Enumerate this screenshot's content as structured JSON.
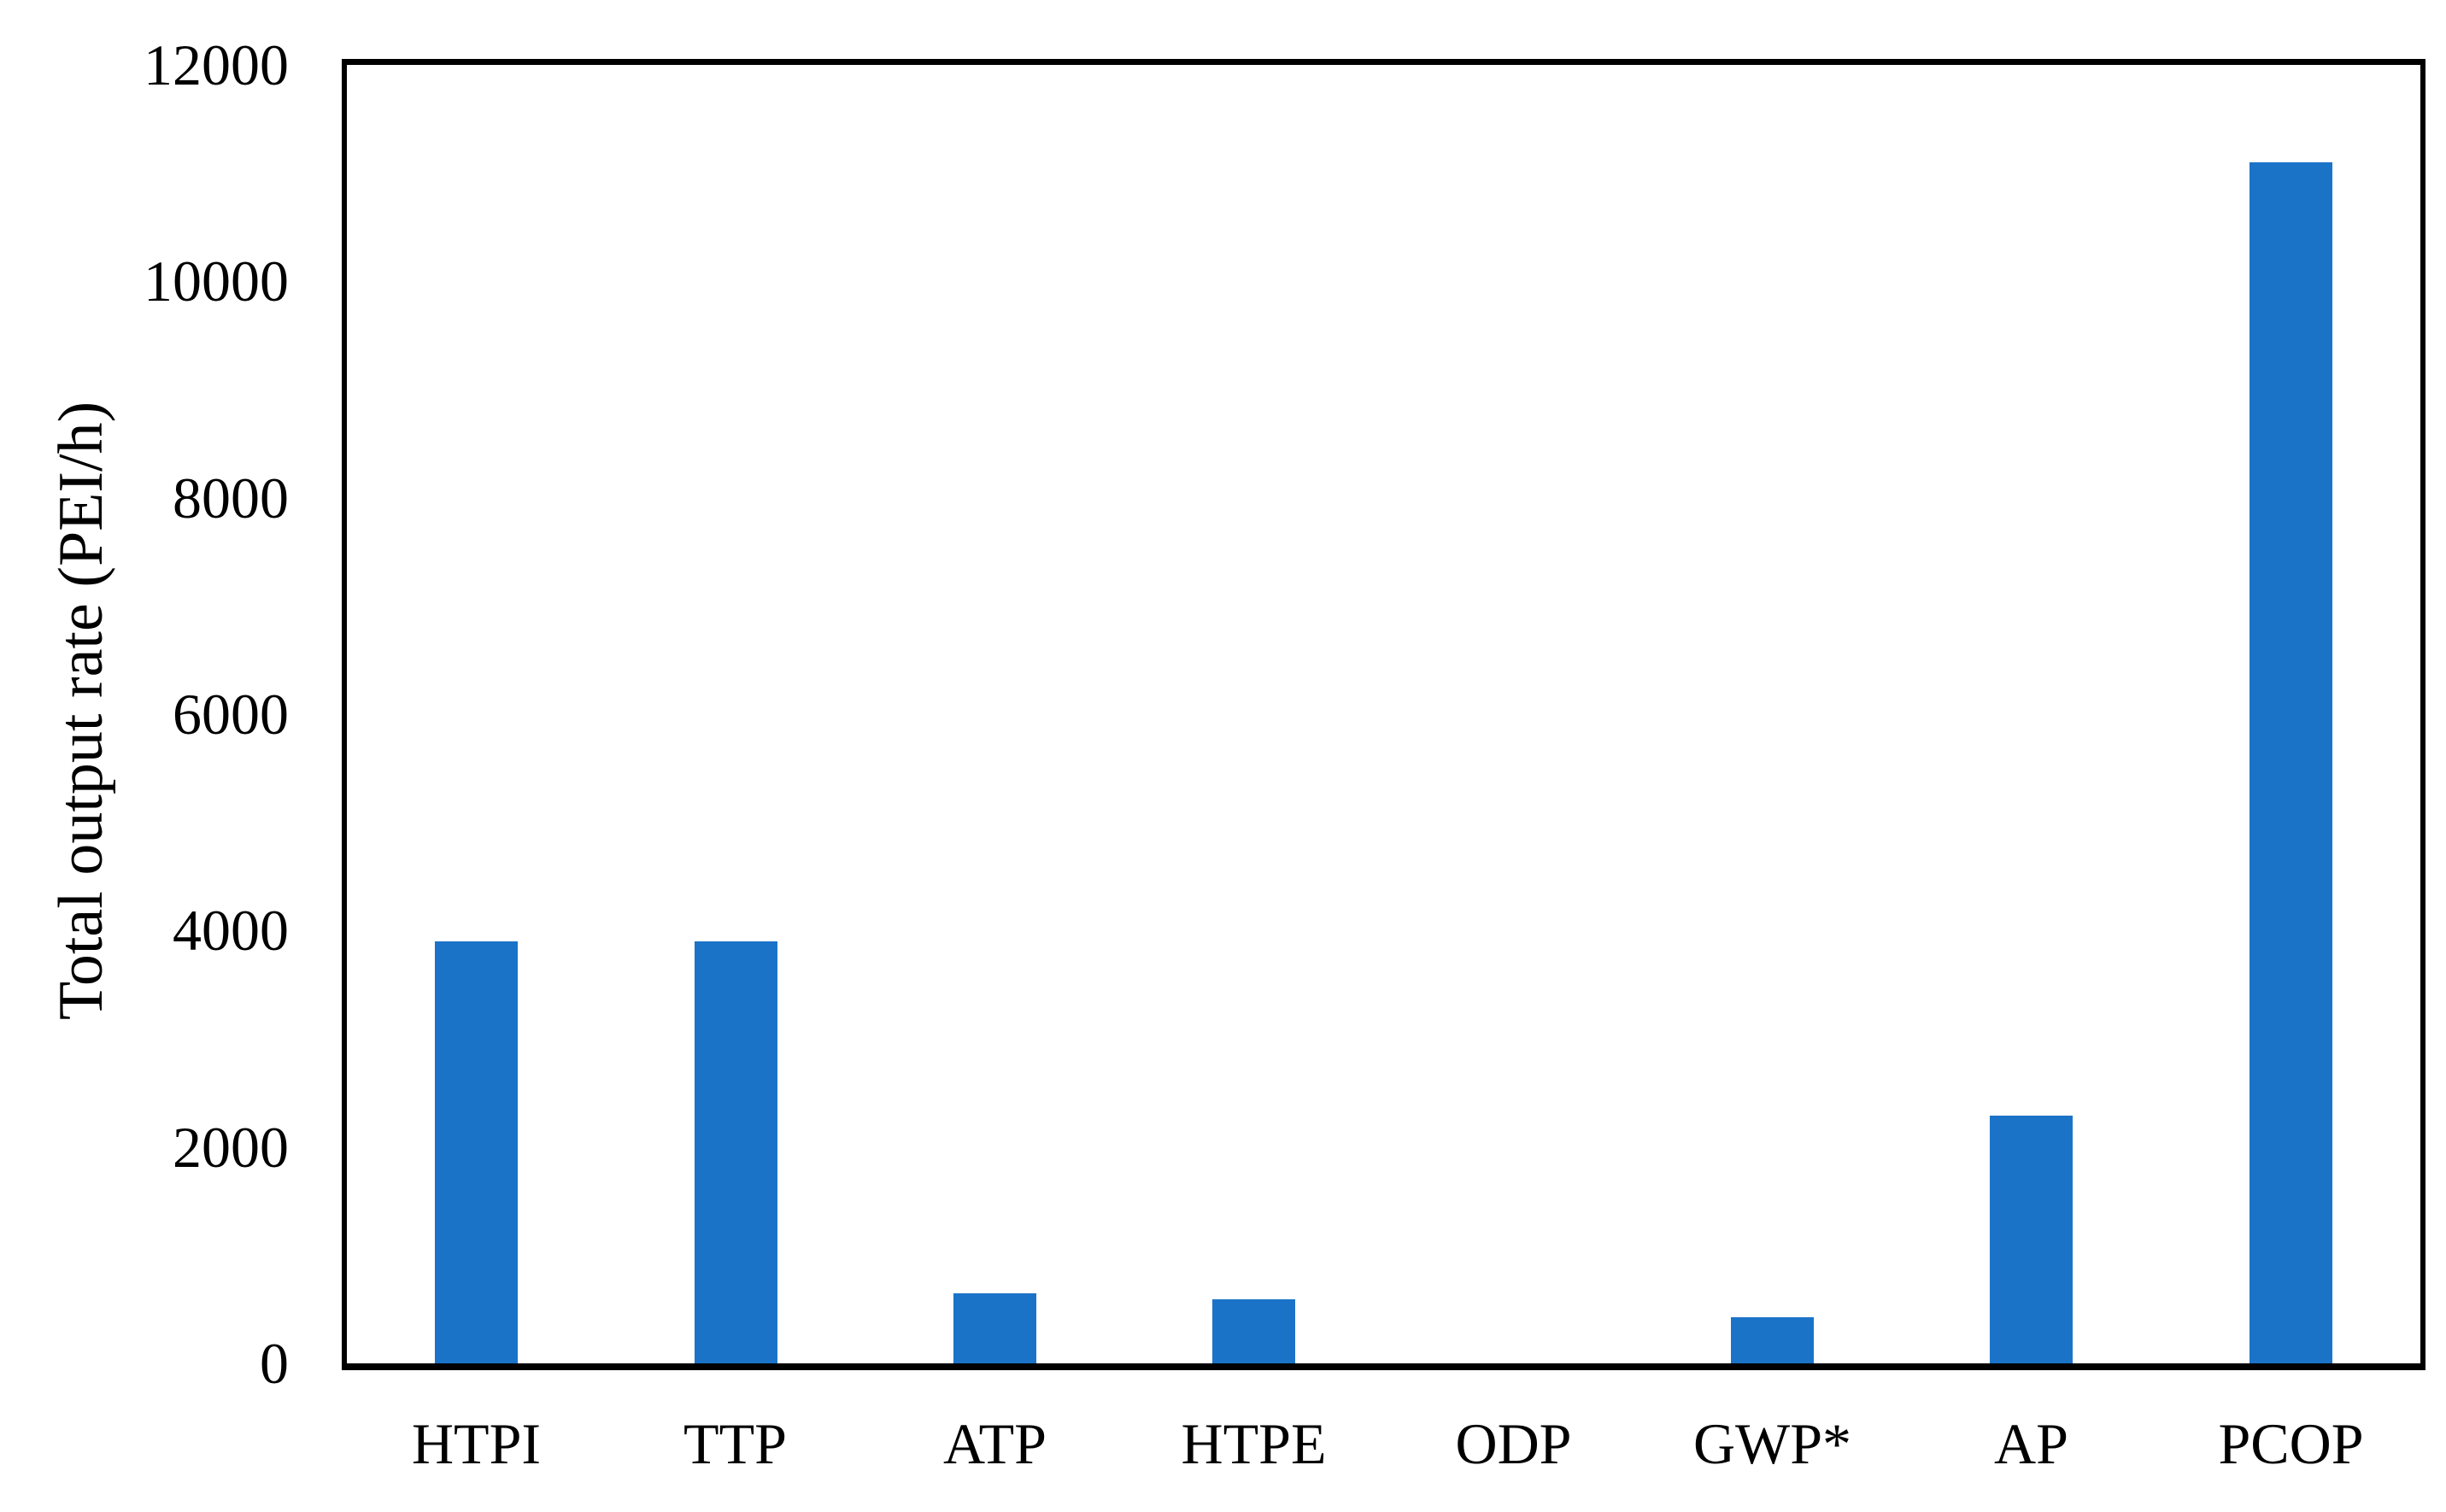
{
  "chart_data": {
    "type": "bar",
    "categories": [
      "HTPI",
      "TTP",
      "ATP",
      "HTPE",
      "ODP",
      "GWP*",
      "AP",
      "PCOP"
    ],
    "values": [
      3900,
      3900,
      650,
      590,
      0,
      430,
      2290,
      11100
    ],
    "title": "",
    "xlabel": "",
    "ylabel": "Total output rate (PEI/h)",
    "ylim": [
      0,
      12000
    ],
    "yticks": [
      0,
      2000,
      4000,
      6000,
      8000,
      10000,
      12000
    ],
    "grid": false,
    "legend": false,
    "bar_color": "#1B73C8",
    "axis_color": "#000000",
    "background": "#FFFFFF"
  }
}
